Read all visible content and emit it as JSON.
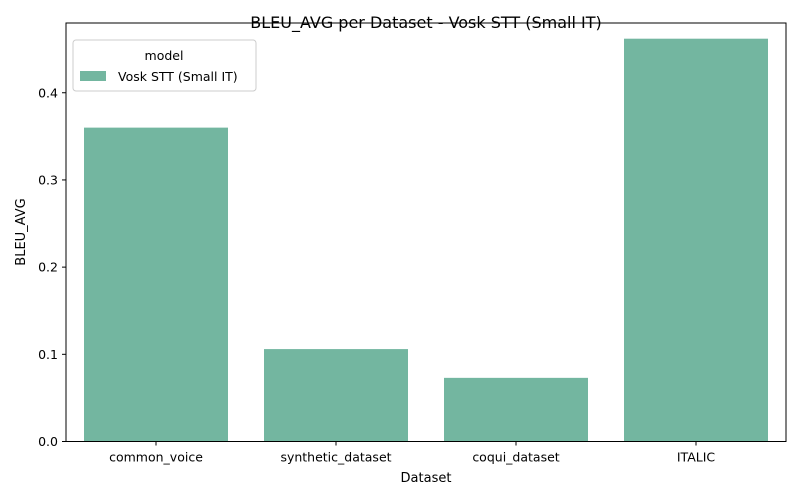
{
  "chart_data": {
    "type": "bar",
    "title": "BLEU_AVG per Dataset - Vosk STT (Small IT)",
    "xlabel": "Dataset",
    "ylabel": "BLEU_AVG",
    "categories": [
      "common_voice",
      "synthetic_dataset",
      "coqui_dataset",
      "ITALIC"
    ],
    "series": [
      {
        "name": "Vosk STT (Small IT)",
        "values": [
          0.36,
          0.106,
          0.073,
          0.462
        ],
        "color": "#73b6a0"
      }
    ],
    "ylim": [
      0,
      0.48
    ],
    "yticks": [
      "0.0",
      "0.1",
      "0.2",
      "0.3",
      "0.4"
    ],
    "legend": {
      "title": "model",
      "position": "top-left"
    },
    "grid": false
  }
}
